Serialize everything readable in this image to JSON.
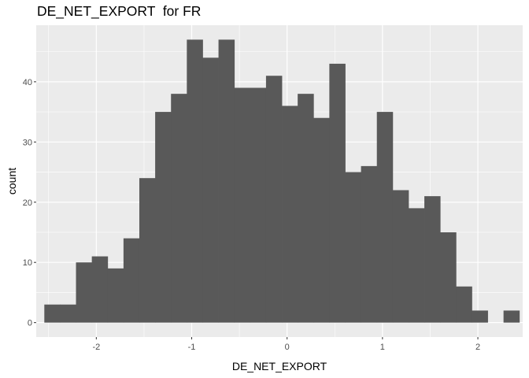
{
  "chart_data": {
    "type": "bar",
    "subtype": "histogram",
    "title": "DE_NET_EXPORT  for FR",
    "xlabel": "DE_NET_EXPORT",
    "ylabel": "count",
    "xlim": [
      -2.63,
      2.47
    ],
    "ylim": [
      -2.4,
      49.4
    ],
    "x_ticks": [
      -2,
      -1,
      0,
      1,
      2
    ],
    "y_ticks": [
      0,
      10,
      20,
      30,
      40
    ],
    "x_tick_labels": [
      "-2",
      "-1",
      "0",
      "1",
      "2"
    ],
    "y_tick_labels": [
      "0",
      "10",
      "20",
      "30",
      "40"
    ],
    "bin_width": 0.166,
    "bin_start": -2.545,
    "values": [
      3,
      3,
      10,
      11,
      9,
      14,
      24,
      35,
      38,
      47,
      44,
      47,
      39,
      39,
      41,
      36,
      38,
      34,
      43,
      25,
      26,
      35,
      22,
      19,
      21,
      15,
      6,
      2,
      0,
      2
    ],
    "grid": true,
    "colors": {
      "panel_background": "#ebebeb",
      "grid_major": "#ffffff",
      "bar_fill": "#595959"
    }
  }
}
